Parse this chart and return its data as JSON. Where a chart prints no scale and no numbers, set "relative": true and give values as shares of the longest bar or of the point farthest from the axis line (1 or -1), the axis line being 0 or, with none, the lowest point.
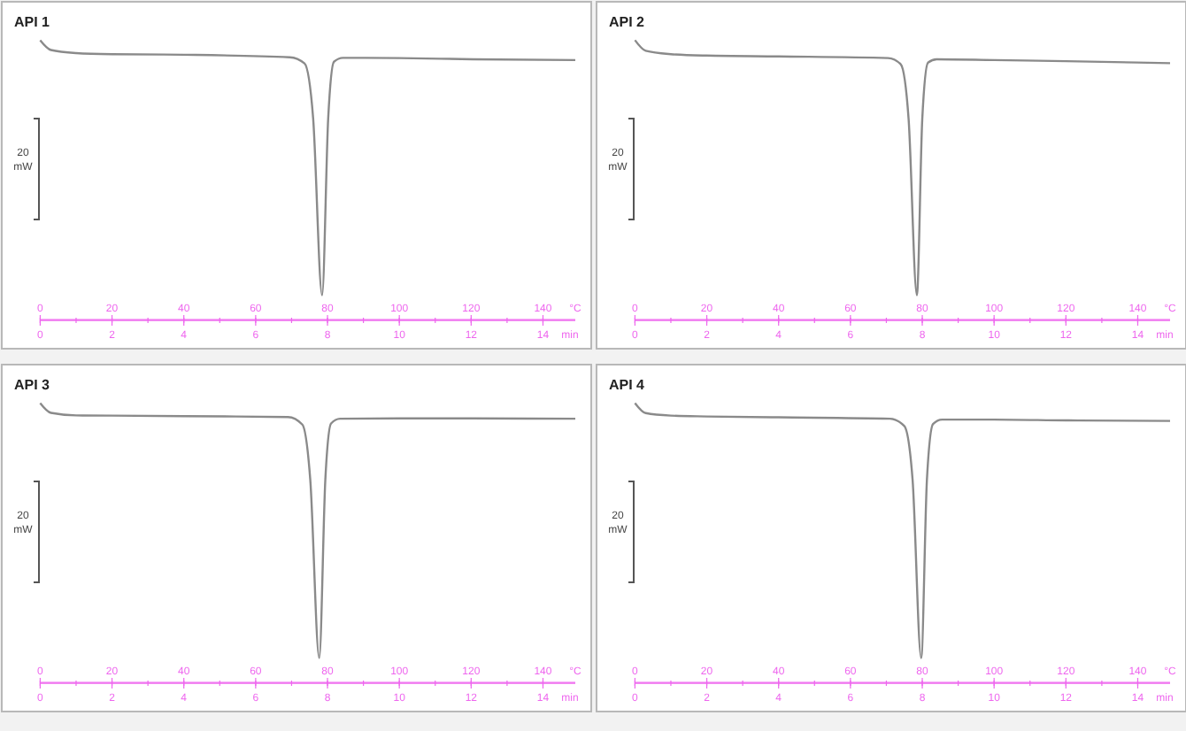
{
  "chart_data": [
    {
      "type": "line",
      "title": "API 1",
      "relative": true,
      "x": [
        0,
        0.3,
        1,
        2,
        4,
        6.95,
        7.36,
        7.6,
        7.85,
        8.02,
        8.18,
        8.43,
        10,
        12.05,
        14.9
      ],
      "series": [
        {
          "color": "#8a8a8a",
          "values": [
            1,
            0.965,
            0.954,
            0.95,
            0.948,
            0.939,
            0.917,
            0.722,
            0.09,
            0.722,
            0.923,
            0.937,
            0.936,
            0.932,
            0.929
          ]
        }
      ],
      "xlim": [
        0,
        14.9
      ],
      "xticks": [
        0,
        2,
        4,
        6,
        8,
        10,
        12,
        14
      ],
      "xlabel": "min",
      "x2lim": [
        0,
        149
      ],
      "x2ticks": [
        0,
        20,
        40,
        60,
        80,
        100,
        120,
        140
      ],
      "x2label": "°C",
      "annotations": [
        "20 mW"
      ],
      "grid": false,
      "legend": false
    },
    {
      "type": "line",
      "title": "API 2",
      "relative": true,
      "x": [
        0,
        0.3,
        1,
        2,
        4,
        7.05,
        7.4,
        7.62,
        7.85,
        8.0,
        8.16,
        8.4,
        10,
        12,
        14.9
      ],
      "series": [
        {
          "color": "#8a8a8a",
          "values": [
            1,
            0.962,
            0.95,
            0.945,
            0.942,
            0.936,
            0.914,
            0.718,
            0.09,
            0.718,
            0.92,
            0.932,
            0.929,
            0.925,
            0.918
          ]
        }
      ],
      "xlim": [
        0,
        14.9
      ],
      "xticks": [
        0,
        2,
        4,
        6,
        8,
        10,
        12,
        14
      ],
      "xlabel": "min",
      "x2lim": [
        0,
        149
      ],
      "x2ticks": [
        0,
        20,
        40,
        60,
        80,
        100,
        120,
        140
      ],
      "x2label": "°C",
      "annotations": [
        "20 mW"
      ],
      "grid": false,
      "legend": false
    },
    {
      "type": "line",
      "title": "API 3",
      "relative": true,
      "x": [
        0,
        0.3,
        1,
        2,
        4,
        6.9,
        7.3,
        7.52,
        7.77,
        7.94,
        8.1,
        8.35,
        10,
        12,
        14.9
      ],
      "series": [
        {
          "color": "#8a8a8a",
          "values": [
            1,
            0.965,
            0.956,
            0.955,
            0.953,
            0.95,
            0.923,
            0.727,
            0.09,
            0.727,
            0.927,
            0.944,
            0.945,
            0.945,
            0.944
          ]
        }
      ],
      "xlim": [
        0,
        14.9
      ],
      "xticks": [
        0,
        2,
        4,
        6,
        8,
        10,
        12,
        14
      ],
      "xlabel": "min",
      "x2lim": [
        0,
        149
      ],
      "x2ticks": [
        0,
        20,
        40,
        60,
        80,
        100,
        120,
        140
      ],
      "x2label": "°C",
      "annotations": [
        "20 mW"
      ],
      "grid": false,
      "legend": false
    },
    {
      "type": "line",
      "title": "API 4",
      "relative": true,
      "x": [
        0,
        0.3,
        1,
        2,
        4,
        7.1,
        7.5,
        7.73,
        7.97,
        8.13,
        8.3,
        8.55,
        10,
        12,
        14.9
      ],
      "series": [
        {
          "color": "#8a8a8a",
          "values": [
            1,
            0.964,
            0.955,
            0.952,
            0.949,
            0.944,
            0.918,
            0.727,
            0.09,
            0.727,
            0.925,
            0.941,
            0.941,
            0.938,
            0.936
          ]
        }
      ],
      "xlim": [
        0,
        14.9
      ],
      "xticks": [
        0,
        2,
        4,
        6,
        8,
        10,
        12,
        14
      ],
      "xlabel": "min",
      "x2lim": [
        0,
        149
      ],
      "x2ticks": [
        0,
        20,
        40,
        60,
        80,
        100,
        120,
        140
      ],
      "x2label": "°C",
      "annotations": [
        "20 mW"
      ],
      "grid": false,
      "legend": false
    }
  ]
}
